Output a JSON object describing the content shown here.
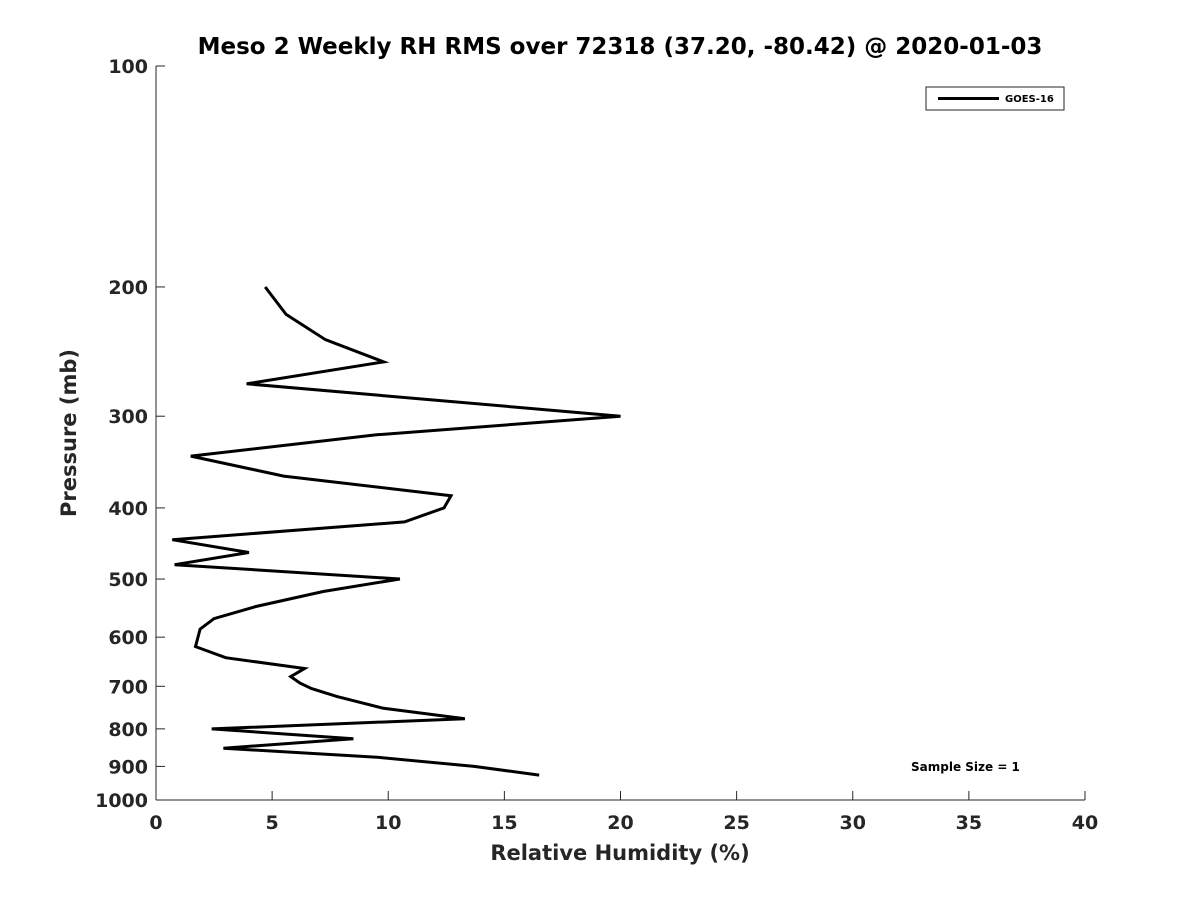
{
  "chart_data": {
    "type": "line",
    "title": "Meso 2 Weekly RH RMS over 72318 (37.20, -80.42) @ 2020-01-03",
    "xlabel": "Relative Humidity (%)",
    "ylabel": "Pressure (mb)",
    "xlim": [
      0,
      40
    ],
    "ylim": [
      100,
      1000
    ],
    "y_scale": "log",
    "y_reversed": true,
    "x_ticks": [
      "0",
      "5",
      "10",
      "15",
      "20",
      "25",
      "30",
      "35",
      "40"
    ],
    "y_ticks": [
      "100",
      "200",
      "300",
      "400",
      "500",
      "600",
      "700",
      "800",
      "900",
      "1000"
    ],
    "grid": false,
    "legend_position": "top-right",
    "series": [
      {
        "name": "GOES-16",
        "color": "#000000",
        "points": [
          {
            "x": 4.7,
            "y": 200
          },
          {
            "x": 5.6,
            "y": 218
          },
          {
            "x": 7.3,
            "y": 236
          },
          {
            "x": 9.8,
            "y": 253
          },
          {
            "x": 3.9,
            "y": 271
          },
          {
            "x": 20.0,
            "y": 300
          },
          {
            "x": 9.5,
            "y": 318
          },
          {
            "x": 1.5,
            "y": 340
          },
          {
            "x": 5.5,
            "y": 362
          },
          {
            "x": 12.7,
            "y": 385
          },
          {
            "x": 12.4,
            "y": 400
          },
          {
            "x": 10.7,
            "y": 418
          },
          {
            "x": 0.7,
            "y": 442
          },
          {
            "x": 4.0,
            "y": 460
          },
          {
            "x": 0.8,
            "y": 478
          },
          {
            "x": 10.5,
            "y": 500
          },
          {
            "x": 7.2,
            "y": 520
          },
          {
            "x": 4.3,
            "y": 545
          },
          {
            "x": 2.5,
            "y": 566
          },
          {
            "x": 1.9,
            "y": 585
          },
          {
            "x": 1.7,
            "y": 618
          },
          {
            "x": 3.0,
            "y": 640
          },
          {
            "x": 6.4,
            "y": 662
          },
          {
            "x": 5.8,
            "y": 679
          },
          {
            "x": 6.2,
            "y": 693
          },
          {
            "x": 6.7,
            "y": 705
          },
          {
            "x": 7.8,
            "y": 723
          },
          {
            "x": 9.8,
            "y": 750
          },
          {
            "x": 13.3,
            "y": 775
          },
          {
            "x": 2.4,
            "y": 800
          },
          {
            "x": 8.5,
            "y": 825
          },
          {
            "x": 2.9,
            "y": 850
          },
          {
            "x": 9.6,
            "y": 875
          },
          {
            "x": 13.7,
            "y": 900
          },
          {
            "x": 16.5,
            "y": 925
          }
        ]
      }
    ],
    "annotations": [
      {
        "text": "Sample Size = 1"
      }
    ]
  }
}
